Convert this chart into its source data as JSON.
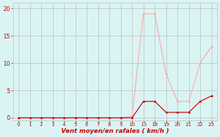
{
  "categories": [
    "0",
    "1",
    "2",
    "3",
    "4",
    "5",
    "6",
    "7",
    "8",
    "9",
    "10",
    "13",
    "18",
    "19",
    "20",
    "21",
    "22",
    "23"
  ],
  "wind_avg": [
    0,
    0,
    0,
    0,
    0,
    0,
    0,
    0,
    0,
    0,
    0,
    3,
    3,
    1,
    1,
    1,
    3,
    4
  ],
  "wind_gust": [
    0,
    0,
    0,
    0,
    0,
    0,
    0,
    0,
    0,
    0,
    0.3,
    19,
    19,
    8,
    3,
    3,
    10,
    13
  ],
  "xlabel": "Vent moyen/en rafales ( km/h )",
  "ylim": [
    -0.5,
    21
  ],
  "yticks": [
    0,
    5,
    10,
    15,
    20
  ],
  "color_avg": "#cc0000",
  "color_gust": "#ffaaaa",
  "bg_color": "#daf4f4",
  "grid_color": "#bbbbbb"
}
